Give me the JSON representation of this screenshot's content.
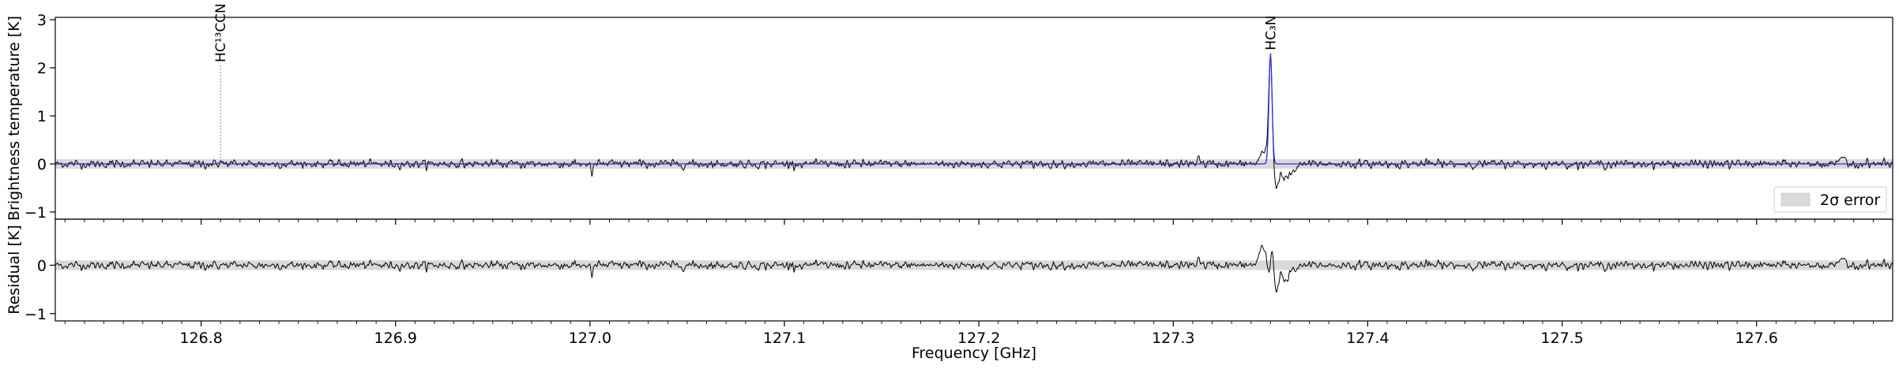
{
  "chart_data": {
    "type": "line",
    "x_unit": "GHz",
    "xlim": [
      126.725,
      127.67
    ],
    "xlabel": "Frequency [GHz]",
    "x_ticks": [
      126.8,
      126.9,
      127.0,
      127.1,
      127.2,
      127.3,
      127.4,
      127.5,
      127.6
    ],
    "x_tick_labels": [
      "126.8",
      "126.9",
      "127.0",
      "127.1",
      "127.2",
      "127.3",
      "127.4",
      "127.5",
      "127.6"
    ],
    "panels": [
      {
        "name": "spectrum",
        "ylabel": "Brightness temperature [K]",
        "ylim": [
          -1.15,
          3.05
        ],
        "y_ticks": [
          -1,
          0,
          1,
          2,
          3
        ],
        "y_tick_labels": [
          "−1",
          "0",
          "1",
          "2",
          "3"
        ],
        "error_band": [
          -0.1,
          0.1
        ],
        "legend": {
          "label": "2σ error",
          "placement": "lower-right"
        },
        "line_markers": [
          {
            "label": "HC¹³CCN",
            "x": 126.81,
            "y_from": 0.05,
            "y_to": 2.05
          },
          {
            "label": "HC₃N",
            "x": 127.35,
            "y_from": 2.3,
            "y_to": 2.3
          }
        ],
        "model_line": {
          "color": "#2b2bd6",
          "baseline": 0.0,
          "peaks": [
            {
              "center": 127.35,
              "height": 2.3,
              "width": 0.0008
            },
            {
              "center": 126.81,
              "height": 0.05,
              "width": 0.0006
            }
          ]
        },
        "observed_features": [
          {
            "center": 127.347,
            "amp": 0.25,
            "width": 0.002
          },
          {
            "center": 127.35,
            "amp": 2.2,
            "width": 0.0009
          },
          {
            "center": 127.353,
            "amp": -0.5,
            "width": 0.0012
          },
          {
            "center": 127.357,
            "amp": -0.25,
            "width": 0.0015
          },
          {
            "center": 127.36,
            "amp": -0.2,
            "width": 0.0016
          },
          {
            "center": 127.363,
            "amp": -0.08,
            "width": 0.0015
          },
          {
            "center": 127.313,
            "amp": 0.15,
            "width": 0.0008
          },
          {
            "center": 127.001,
            "amp": -0.22,
            "width": 0.0006
          },
          {
            "center": 127.645,
            "amp": 0.14,
            "width": 0.0012
          },
          {
            "center": 126.81,
            "amp": 0.05,
            "width": 0.0008
          }
        ],
        "noise_rms": 0.045
      },
      {
        "name": "residual",
        "ylabel": "Residual [K]",
        "ylim": [
          -1.15,
          0.95
        ],
        "y_ticks": [
          -1,
          0
        ],
        "y_tick_labels": [
          "−1",
          "0"
        ],
        "error_band": [
          -0.1,
          0.1
        ],
        "observed_features": [
          {
            "center": 127.346,
            "amp": 0.35,
            "width": 0.0018
          },
          {
            "center": 127.349,
            "amp": -0.25,
            "width": 0.0007
          },
          {
            "center": 127.351,
            "amp": 0.45,
            "width": 0.0007
          },
          {
            "center": 127.353,
            "amp": -0.55,
            "width": 0.0012
          },
          {
            "center": 127.358,
            "amp": -0.35,
            "width": 0.0016
          },
          {
            "center": 127.363,
            "amp": -0.1,
            "width": 0.0015
          },
          {
            "center": 127.313,
            "amp": 0.15,
            "width": 0.0008
          },
          {
            "center": 127.001,
            "amp": -0.22,
            "width": 0.0006
          },
          {
            "center": 127.645,
            "amp": 0.14,
            "width": 0.0012
          }
        ],
        "noise_rms": 0.045
      }
    ],
    "colors": {
      "observed": "#000000",
      "model": "#2b2bd6",
      "band": "#d9d9d9",
      "marker": "#888888"
    }
  }
}
